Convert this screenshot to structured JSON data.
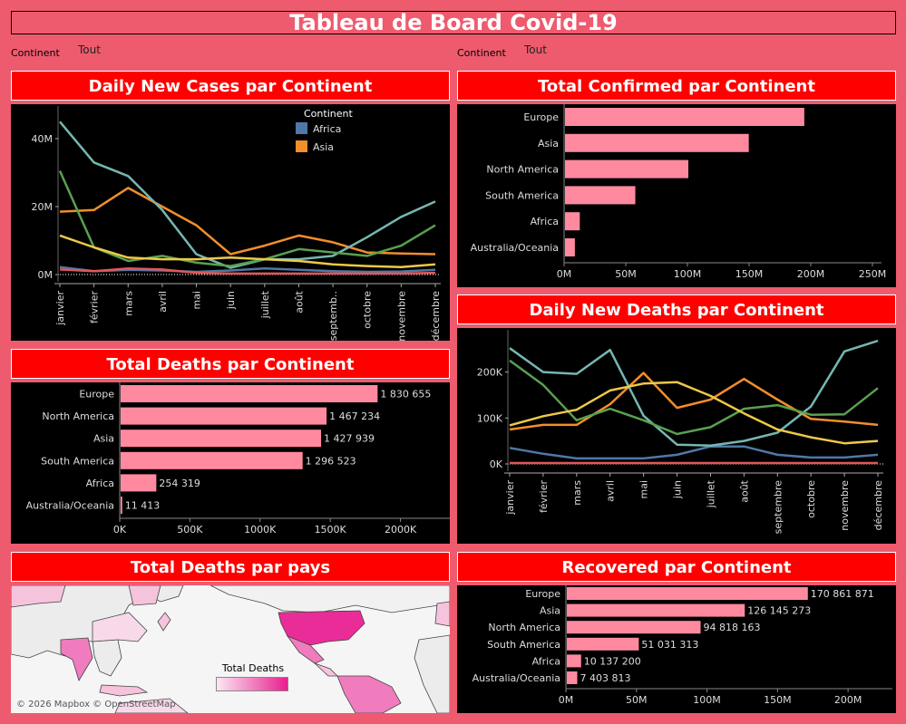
{
  "dashboard": {
    "title": "Tableau de Board Covid-19"
  },
  "filters": [
    {
      "label": "Continent",
      "value": "Tout"
    },
    {
      "label": "Continent",
      "value": "Tout"
    }
  ],
  "panels": {
    "daily_cases": "Daily New Cases par Continent",
    "total_confirmed": "Total Confirmed par Continent",
    "total_deaths": "Total Deaths par Continent",
    "daily_deaths": "Daily New Deaths par Continent",
    "deaths_map": "Total Deaths par pays",
    "recovered": "Recovered par Continent"
  },
  "map": {
    "legend_title": "Total Deaths",
    "attribution": "© 2026 Mapbox © OpenStreetMap"
  },
  "chart_data": [
    {
      "id": "daily_cases",
      "type": "line",
      "title": "Daily New Cases par Continent",
      "x": [
        "janvier",
        "février",
        "mars",
        "avril",
        "mai",
        "juin",
        "juillet",
        "août",
        "septemb..",
        "octobre",
        "novembre",
        "décembre"
      ],
      "yticks": [
        "0M",
        "20M",
        "40M"
      ],
      "ylim": [
        0,
        48
      ],
      "legend_title": "Continent",
      "legend": [
        {
          "name": "Africa",
          "color": "#4e79a7"
        },
        {
          "name": "Asia",
          "color": "#f28e2b"
        }
      ],
      "series": [
        {
          "name": "Africa",
          "color": "#4e79a7",
          "values": [
            2.2,
            1.0,
            1.4,
            1.2,
            0.8,
            1.2,
            1.8,
            1.4,
            1.0,
            0.8,
            0.9,
            1.4
          ]
        },
        {
          "name": "Asia",
          "color": "#f28e2b",
          "values": [
            18.5,
            19,
            25.5,
            20,
            14.5,
            6,
            8.5,
            11.5,
            9.5,
            6.5,
            6.2,
            6
          ]
        },
        {
          "color": "#e15759",
          "values": [
            1.5,
            1.0,
            1.8,
            1.5,
            0.5,
            0.3,
            0.3,
            0.3,
            0.3,
            0.3,
            0.3,
            0.5
          ]
        },
        {
          "color": "#76b7b2",
          "values": [
            45,
            33,
            29,
            19,
            6,
            2,
            4.5,
            4.5,
            5.5,
            11,
            17,
            21.5
          ]
        },
        {
          "color": "#59a14f",
          "values": [
            30.5,
            8,
            4,
            5.5,
            3.5,
            2.5,
            4.5,
            7.5,
            6.5,
            5.5,
            8.5,
            14.5
          ]
        },
        {
          "color": "#edc948",
          "values": [
            11.5,
            8,
            5,
            4.5,
            4.5,
            5,
            4.5,
            4,
            3,
            2.5,
            2.2,
            3
          ]
        }
      ]
    },
    {
      "id": "total_confirmed",
      "type": "bar",
      "categories": [
        "Europe",
        "Asia",
        "North America",
        "South America",
        "Africa",
        "Australia/Oceania"
      ],
      "values": [
        194,
        149,
        100,
        57,
        12,
        8
      ],
      "xticks": [
        "0M",
        "50M",
        "100M",
        "150M",
        "200M",
        "250M"
      ],
      "xlim": [
        0,
        250
      ]
    },
    {
      "id": "total_deaths",
      "type": "bar",
      "categories": [
        "Europe",
        "North America",
        "Asia",
        "South America",
        "Africa",
        "Australia/Oceania"
      ],
      "values": [
        1830655,
        1467234,
        1427939,
        1296523,
        254319,
        11413
      ],
      "labels": [
        "1 830 655",
        "1 467 234",
        "1 427 939",
        "1 296 523",
        "254 319",
        "11 413"
      ],
      "xticks": [
        "0K",
        "500K",
        "1000K",
        "1500K",
        "2000K"
      ],
      "xlim": [
        0,
        2300000
      ]
    },
    {
      "id": "daily_deaths",
      "type": "line",
      "x": [
        "janvier",
        "février",
        "mars",
        "avril",
        "mai",
        "juin",
        "juillet",
        "août",
        "septembre",
        "octobre",
        "novembre",
        "décembre"
      ],
      "yticks": [
        "0K",
        "100K",
        "200K"
      ],
      "ylim": [
        0,
        280
      ],
      "series": [
        {
          "color": "#4e79a7",
          "values": [
            35,
            22,
            12,
            12,
            12,
            20,
            38,
            38,
            20,
            14,
            14,
            20
          ]
        },
        {
          "color": "#f28e2b",
          "values": [
            75,
            85,
            85,
            130,
            198,
            122,
            140,
            185,
            140,
            98,
            92,
            85
          ]
        },
        {
          "color": "#e15759",
          "values": [
            2,
            2,
            2,
            2,
            2,
            2,
            2,
            2,
            2,
            2,
            2,
            2
          ]
        },
        {
          "color": "#76b7b2",
          "values": [
            252,
            200,
            196,
            248,
            105,
            42,
            40,
            50,
            68,
            125,
            245,
            268
          ]
        },
        {
          "color": "#59a14f",
          "values": [
            225,
            172,
            95,
            120,
            95,
            65,
            80,
            120,
            128,
            107,
            108,
            165
          ]
        },
        {
          "color": "#edc948",
          "values": [
            84,
            104,
            118,
            160,
            175,
            178,
            148,
            110,
            75,
            58,
            45,
            50
          ]
        }
      ]
    },
    {
      "id": "recovered",
      "type": "bar",
      "categories": [
        "Europe",
        "Asia",
        "North America",
        "South America",
        "Africa",
        "Australia/Oceania"
      ],
      "values": [
        170861871,
        126145273,
        94818163,
        51031313,
        10137200,
        7403813
      ],
      "labels": [
        "170 861 871",
        "126 145 273",
        "94 818 163",
        "51 031 313",
        "10 137 200",
        "7 403 813"
      ],
      "xticks": [
        "0M",
        "50M",
        "100M",
        "150M",
        "200M"
      ],
      "xlim": [
        0,
        225000000
      ]
    }
  ]
}
